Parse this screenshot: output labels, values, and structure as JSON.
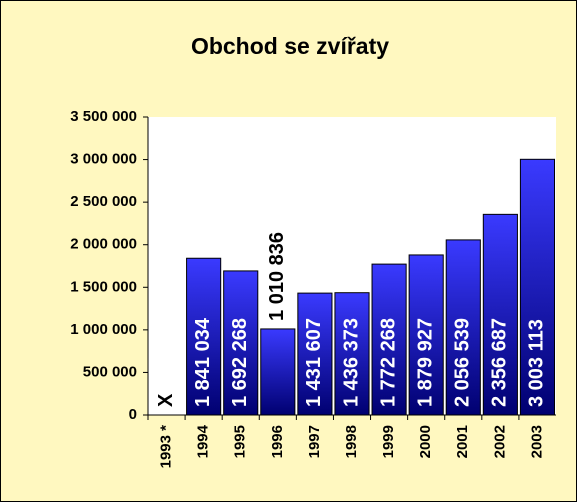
{
  "chart_data": {
    "type": "bar",
    "title": "Obchod se zvířaty",
    "categories": [
      "1993 *",
      "1994",
      "1995",
      "1996",
      "1997",
      "1998",
      "1999",
      "2000",
      "2001",
      "2002",
      "2003"
    ],
    "values": [
      null,
      1841034,
      1692268,
      1010836,
      1431607,
      1436373,
      1772268,
      1879927,
      2056539,
      2356687,
      3003113
    ],
    "value_labels": [
      "X",
      "1 841 034",
      "1 692 268",
      "1 010 836",
      "1 431 607",
      "1 436 373",
      "1 772 268",
      "1 879 927",
      "2 056 539",
      "2 356 687",
      "3 003 113"
    ],
    "color": "#0000ff",
    "ylim": [
      0,
      3500000
    ],
    "yticks": [
      0,
      {
        "value": 500000,
        "label": "500 000"
      },
      {
        "value": 1000000,
        "label": "1 000 000"
      },
      {
        "value": 1500000,
        "label": "1 500 000"
      },
      {
        "value": 2000000,
        "label": "2 000 000"
      },
      {
        "value": 2500000,
        "label": "2 500 000"
      },
      {
        "value": 3000000,
        "label": "3 000 000"
      },
      {
        "value": 3500000,
        "label": "3 500 000"
      }
    ]
  }
}
